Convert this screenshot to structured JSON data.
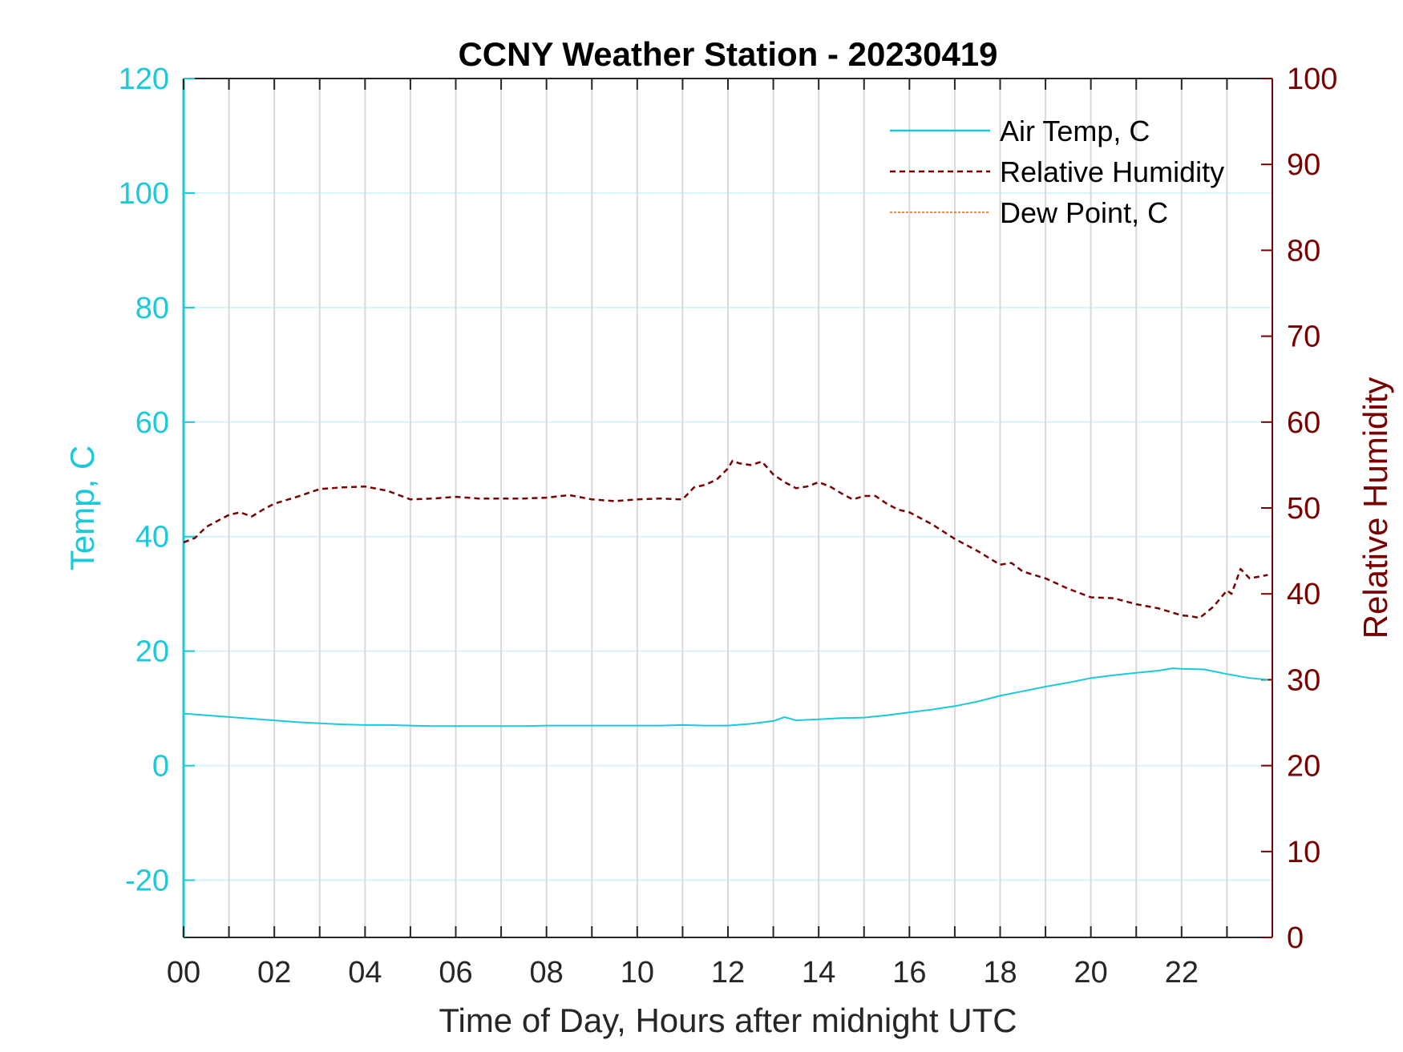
{
  "chart_data": {
    "type": "line",
    "title": "CCNY Weather Station - 20230419",
    "xlabel": "Time of Day, Hours after midnight UTC",
    "ylabel_left": "Temp, C",
    "ylabel_right": "Relative Humidity",
    "xlim": [
      0,
      24
    ],
    "ylim_left": [
      -30,
      120
    ],
    "ylim_right": [
      0,
      100
    ],
    "x_ticks": [
      "00",
      "02",
      "04",
      "06",
      "08",
      "10",
      "12",
      "14",
      "16",
      "18",
      "20",
      "22"
    ],
    "y_ticks_left": [
      "-20",
      "0",
      "20",
      "40",
      "60",
      "80",
      "100",
      "120"
    ],
    "y_ticks_right": [
      "0",
      "10",
      "20",
      "30",
      "40",
      "50",
      "60",
      "70",
      "80",
      "90",
      "100"
    ],
    "grid": "on",
    "legend_position": "top-right",
    "colors": {
      "temp": "#1ec8dc",
      "humidity": "#7a0000",
      "dewpoint": "#e06010",
      "grid_vertical": "#d9d9d9",
      "grid_horizontal": "#d6f4f8"
    },
    "series": [
      {
        "name": "Air Temp, C",
        "axis": "left",
        "style": "solid",
        "x": [
          0,
          0.5,
          1,
          1.5,
          2,
          2.5,
          3,
          3.5,
          4,
          4.5,
          5,
          5.5,
          6,
          6.5,
          7,
          7.5,
          8,
          8.5,
          9,
          9.5,
          10,
          10.5,
          11,
          11.5,
          12,
          12.5,
          13,
          13.25,
          13.5,
          14,
          14.5,
          15,
          15.5,
          16,
          16.5,
          17,
          17.5,
          18,
          18.5,
          19,
          19.5,
          20,
          20.5,
          21,
          21.5,
          21.8,
          22,
          22.5,
          23,
          23.5,
          23.9
        ],
        "values": [
          9.1,
          8.8,
          8.5,
          8.2,
          7.9,
          7.6,
          7.4,
          7.2,
          7.1,
          7.1,
          7.0,
          6.9,
          6.9,
          6.9,
          6.9,
          6.9,
          7.0,
          7.0,
          7.0,
          7.0,
          7.0,
          7.0,
          7.1,
          7.0,
          7.0,
          7.3,
          7.8,
          8.5,
          7.9,
          8.1,
          8.3,
          8.4,
          8.8,
          9.3,
          9.8,
          10.4,
          11.2,
          12.2,
          13.0,
          13.8,
          14.5,
          15.3,
          15.8,
          16.2,
          16.6,
          17.0,
          16.9,
          16.8,
          16.0,
          15.3,
          15.0
        ]
      },
      {
        "name": "Relative Humidity",
        "axis": "right",
        "style": "dashed",
        "x": [
          0,
          0.25,
          0.5,
          0.75,
          1,
          1.25,
          1.5,
          1.75,
          2,
          2.5,
          3,
          3.5,
          4,
          4.5,
          5,
          5.5,
          6,
          6.5,
          7,
          7.5,
          8,
          8.5,
          9,
          9.5,
          10,
          10.5,
          11,
          11.25,
          11.5,
          11.75,
          12,
          12.1,
          12.25,
          12.5,
          12.75,
          13,
          13.25,
          13.5,
          13.75,
          14,
          14.25,
          14.5,
          14.75,
          15,
          15.25,
          15.5,
          15.75,
          16,
          16.5,
          17,
          17.5,
          18,
          18.25,
          18.5,
          19,
          19.5,
          20,
          20.5,
          21,
          21.5,
          21.75,
          22,
          22.2,
          22.4,
          22.7,
          23,
          23.1,
          23.3,
          23.5,
          23.9
        ],
        "values": [
          46.0,
          46.5,
          47.8,
          48.5,
          49.2,
          49.5,
          49.0,
          49.8,
          50.5,
          51.3,
          52.2,
          52.4,
          52.5,
          52.0,
          51.0,
          51.1,
          51.3,
          51.1,
          51.1,
          51.1,
          51.2,
          51.5,
          51.0,
          50.8,
          51.0,
          51.1,
          51.0,
          52.4,
          52.7,
          53.3,
          54.6,
          55.5,
          55.2,
          55.0,
          55.4,
          53.9,
          53.0,
          52.3,
          52.5,
          53.0,
          52.5,
          51.7,
          51.0,
          51.4,
          51.4,
          50.5,
          49.8,
          49.5,
          48.1,
          46.4,
          45.0,
          43.4,
          43.6,
          42.6,
          41.8,
          40.6,
          39.6,
          39.5,
          38.8,
          38.3,
          37.9,
          37.5,
          37.4,
          37.2,
          38.5,
          40.4,
          40.0,
          42.9,
          41.8,
          42.2
        ]
      },
      {
        "name": "Dew Point, C",
        "axis": "left",
        "style": "dashed-thin",
        "x": [],
        "values": []
      }
    ]
  }
}
